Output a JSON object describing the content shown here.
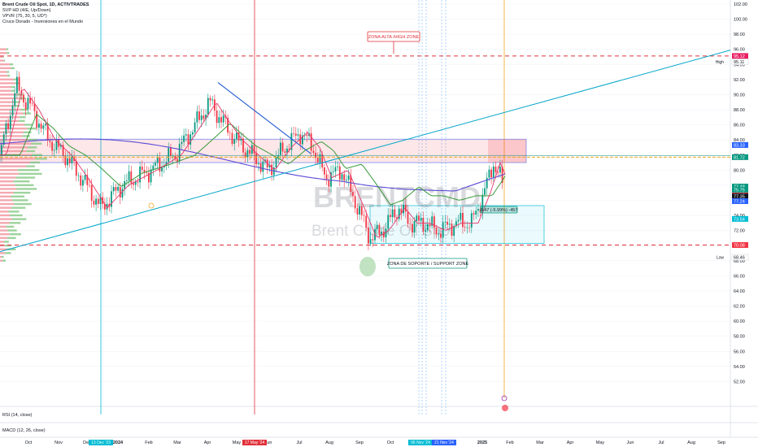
{
  "chart_data": {
    "type": "candlestick",
    "title": "Brent Crude Oil Spot, 1D, ACTIVTRADES",
    "indicators": [
      "SVP HD (4/E, Up/Down)",
      "VPVR (75, 30, 5, UD*)",
      "Cruce Dorado - Inversiones en el Mundo"
    ],
    "watermark": [
      "BRENTCMD",
      "Brent Crude Oil Spot"
    ],
    "y_axis": {
      "ylim": [
        50,
        102
      ],
      "ticks": [
        "102.00",
        "100.00",
        "98.00",
        "96.00",
        "94.00",
        "92.00",
        "90.00",
        "88.00",
        "86.00",
        "84.00",
        "82.00",
        "80.00",
        "78.00",
        "76.00",
        "74.00",
        "72.00",
        "70.00",
        "68.00",
        "66.00",
        "64.00",
        "62.00",
        "60.00",
        "58.00",
        "56.00",
        "54.00",
        "52.00"
      ],
      "price_labels": [
        {
          "value": 95.12,
          "text": "95.12",
          "color": "#e91e63"
        },
        {
          "value": 95.11,
          "text": "95.11",
          "tag": "High",
          "color": "#ffffff"
        },
        {
          "value": 83.33,
          "text": "83.33",
          "color": "#2962ff"
        },
        {
          "value": 81.72,
          "text": "81.72",
          "color": "#089981"
        },
        {
          "value": 77.48,
          "text": "77.48",
          "color": "#089981"
        },
        {
          "value": 77.4,
          "text": "77.40",
          "color": "#f23645"
        },
        {
          "value": 77.35,
          "text": "77.35",
          "color": "#131722"
        },
        {
          "value": 77.24,
          "text": "77.24",
          "color": "#2962ff"
        },
        {
          "value": 75.75,
          "text": "75.75",
          "color": "#089981"
        },
        {
          "value": 73.54,
          "text": "73.54",
          "color": "#00bcd4"
        },
        {
          "value": 70.08,
          "text": "70.08",
          "color": "#f23645"
        },
        {
          "value": 68.46,
          "text": "68.46",
          "tag": "Low",
          "color": "#ffffff"
        }
      ]
    },
    "x_axis": {
      "labels": [
        "Oct",
        "Nov",
        "Dec",
        "2024",
        "Feb",
        "Mar",
        "Apr",
        "May",
        "Jun",
        "Jul",
        "Aug",
        "Sep",
        "Oct",
        "Nov",
        "Dec",
        "2025",
        "Feb",
        "Mar",
        "Apr",
        "May",
        "Jun",
        "Jul",
        "Aug",
        "Sep"
      ],
      "highlighted": [
        "13 Dec '23",
        "17 May '24",
        "06 Nov '24",
        "21 Nov '24"
      ]
    },
    "zones": [
      {
        "label": "ZONA ALTA /HIGH ZONE",
        "level": 95.12
      },
      {
        "label": "ZONA DE SOPORTE / SUPPORT ZONE",
        "level": 70.08
      }
    ],
    "box_resistance": [
      81.0,
      84.1
    ],
    "box_support": [
      70.3,
      75.3
    ],
    "measure_label": "6.47 (-5.99%) -457",
    "bottom_panels": [
      "RSI (14, close)",
      "MACD (12, 26, close)"
    ],
    "colors": {
      "up": "#089981",
      "down": "#f23645",
      "trendline": "#00a5c9",
      "downtrend": "#1f5bd1",
      "ma_purple": "#5b4bd6",
      "ma_green": "#3a9a3a",
      "ma_pink": "#e2376b"
    }
  }
}
